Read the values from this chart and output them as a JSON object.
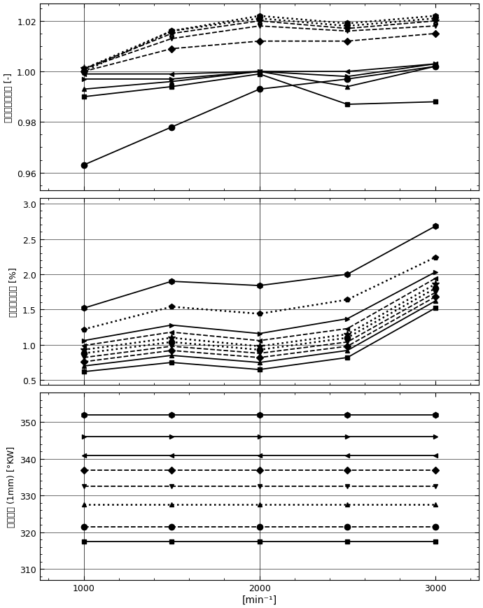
{
  "x": [
    1000,
    1500,
    2000,
    2500,
    3000
  ],
  "plot1": {
    "ylabel": "收集器充气程度 [-]",
    "ylim": [
      0.953,
      1.027
    ],
    "yticks": [
      0.96,
      0.98,
      1.0,
      1.02
    ],
    "yticklabels": [
      "0.96",
      "0.98",
      "1.00",
      "1.02"
    ],
    "series": [
      {
        "y": [
          0.963,
          0.978,
          0.993,
          0.997,
          1.002
        ],
        "marker": "o",
        "ls": "-",
        "lw": 1.3,
        "ms": 6
      },
      {
        "y": [
          0.99,
          0.994,
          0.999,
          0.987,
          0.988
        ],
        "marker": "s",
        "ls": "-",
        "lw": 1.3,
        "ms": 5
      },
      {
        "y": [
          0.993,
          0.996,
          1.0,
          0.994,
          1.002
        ],
        "marker": "^",
        "ls": "-",
        "lw": 1.3,
        "ms": 5
      },
      {
        "y": [
          0.997,
          0.997,
          1.0,
          0.998,
          1.003
        ],
        "marker": ">",
        "ls": "-",
        "lw": 1.3,
        "ms": 5
      },
      {
        "y": [
          0.999,
          0.999,
          1.0,
          1.0,
          1.003
        ],
        "marker": "<",
        "ls": "-",
        "lw": 1.3,
        "ms": 5
      },
      {
        "y": [
          1.0,
          1.009,
          1.012,
          1.012,
          1.015
        ],
        "marker": "D",
        "ls": "--",
        "lw": 1.3,
        "ms": 5
      },
      {
        "y": [
          1.001,
          1.013,
          1.018,
          1.016,
          1.018
        ],
        "marker": "v",
        "ls": "--",
        "lw": 1.3,
        "ms": 5
      },
      {
        "y": [
          1.001,
          1.015,
          1.02,
          1.017,
          1.02
        ],
        "marker": "*",
        "ls": "--",
        "lw": 1.3,
        "ms": 8
      },
      {
        "y": [
          1.001,
          1.016,
          1.021,
          1.018,
          1.021
        ],
        "marker": "p",
        "ls": ":",
        "lw": 1.8,
        "ms": 6
      },
      {
        "y": [
          1.0,
          1.016,
          1.022,
          1.019,
          1.022
        ],
        "marker": "h",
        "ls": ":",
        "lw": 1.8,
        "ms": 6
      }
    ]
  },
  "plot2": {
    "ylabel": "残余废气含量 [%]",
    "ylim": [
      0.43,
      3.08
    ],
    "yticks": [
      0.5,
      1.0,
      1.5,
      2.0,
      2.5,
      3.0
    ],
    "yticklabels": [
      "0.5",
      "1.0",
      "1.5",
      "2.0",
      "2.5",
      "3.0"
    ],
    "series": [
      {
        "y": [
          0.62,
          0.75,
          0.65,
          0.82,
          1.52
        ],
        "marker": "s",
        "ls": "-",
        "lw": 1.3,
        "ms": 5
      },
      {
        "y": [
          0.7,
          0.85,
          0.75,
          0.92,
          1.62
        ],
        "marker": "^",
        "ls": "-",
        "lw": 1.3,
        "ms": 5
      },
      {
        "y": [
          0.76,
          0.92,
          0.82,
          0.98,
          1.68
        ],
        "marker": "D",
        "ls": "--",
        "lw": 1.3,
        "ms": 5
      },
      {
        "y": [
          0.82,
          0.98,
          0.88,
          1.04,
          1.74
        ],
        "marker": "v",
        "ls": "--",
        "lw": 1.3,
        "ms": 5
      },
      {
        "y": [
          0.88,
          1.04,
          0.93,
          1.1,
          1.8
        ],
        "marker": "o",
        "ls": ":",
        "lw": 1.8,
        "ms": 6
      },
      {
        "y": [
          0.93,
          1.1,
          0.98,
          1.15,
          1.86
        ],
        "marker": "*",
        "ls": ":",
        "lw": 1.8,
        "ms": 8
      },
      {
        "y": [
          0.99,
          1.18,
          1.06,
          1.23,
          1.94
        ],
        "marker": "<",
        "ls": "--",
        "lw": 1.3,
        "ms": 5
      },
      {
        "y": [
          1.06,
          1.28,
          1.16,
          1.37,
          2.03
        ],
        "marker": ">",
        "ls": "-",
        "lw": 1.3,
        "ms": 5
      },
      {
        "y": [
          1.22,
          1.54,
          1.44,
          1.64,
          2.24
        ],
        "marker": "p",
        "ls": ":",
        "lw": 1.8,
        "ms": 6
      },
      {
        "y": [
          1.52,
          1.9,
          1.84,
          2.0,
          2.68
        ],
        "marker": "h",
        "ls": "-",
        "lw": 1.3,
        "ms": 6
      }
    ]
  },
  "plot3": {
    "ylabel": "进气打开 (1mm) [°KW]",
    "ylim": [
      307,
      358
    ],
    "yticks": [
      310,
      320,
      330,
      340,
      350
    ],
    "yticklabels": [
      "310",
      "320",
      "330",
      "340",
      "350"
    ],
    "series": [
      {
        "y": [
          317.5,
          317.5,
          317.5,
          317.5,
          317.5
        ],
        "marker": "s",
        "ls": "-",
        "lw": 1.3,
        "ms": 5
      },
      {
        "y": [
          321.5,
          321.5,
          321.5,
          321.5,
          321.5
        ],
        "marker": "o",
        "ls": "--",
        "lw": 1.3,
        "ms": 6
      },
      {
        "y": [
          327.5,
          327.5,
          327.5,
          327.5,
          327.5
        ],
        "marker": "^",
        "ls": ":",
        "lw": 1.8,
        "ms": 5
      },
      {
        "y": [
          332.5,
          332.5,
          332.5,
          332.5,
          332.5
        ],
        "marker": "v",
        "ls": "--",
        "lw": 1.3,
        "ms": 5
      },
      {
        "y": [
          337.0,
          337.0,
          337.0,
          337.0,
          337.0
        ],
        "marker": "D",
        "ls": "--",
        "lw": 1.3,
        "ms": 5
      },
      {
        "y": [
          341.0,
          341.0,
          341.0,
          341.0,
          341.0
        ],
        "marker": "<",
        "ls": "-",
        "lw": 1.3,
        "ms": 5
      },
      {
        "y": [
          346.0,
          346.0,
          346.0,
          346.0,
          346.0
        ],
        "marker": ">",
        "ls": "-",
        "lw": 1.3,
        "ms": 5
      },
      {
        "y": [
          352.0,
          352.0,
          352.0,
          352.0,
          352.0
        ],
        "marker": "h",
        "ls": "-",
        "lw": 1.3,
        "ms": 6
      }
    ]
  },
  "xlabel": "[min⁻¹]",
  "xticks": [
    1000,
    2000,
    3000
  ],
  "xticklabels": [
    "1000",
    "2000",
    "3000"
  ],
  "xlim": [
    750,
    3250
  ],
  "vlines": [
    1000,
    2000
  ]
}
